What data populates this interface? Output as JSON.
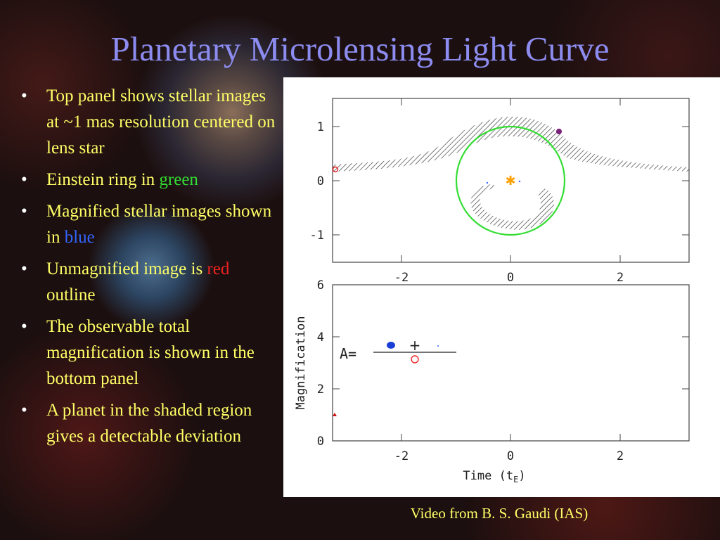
{
  "slide": {
    "title": "Planetary Microlensing Light Curve",
    "credit": "Video from B. S. Gaudi (IAS)"
  },
  "bullets": [
    {
      "text": "Top panel shows stellar images at ~1 mas resolution centered on lens star"
    },
    {
      "pre": "Einstein ring in ",
      "highlight": "green",
      "post": ""
    },
    {
      "pre": "Magnified stellar images shown in ",
      "highlight": "blue",
      "post": ""
    },
    {
      "pre": "Unmagnified image is ",
      "highlight": "red",
      "post": " outline"
    },
    {
      "text": "The observable total magnification is shown in the bottom panel"
    },
    {
      "text": "A planet in the shaded region gives a detectable deviation"
    }
  ],
  "colors": {
    "title": "#8c8cf0",
    "bullet_text": "#ffff66",
    "green": "#33dd33",
    "blue": "#3366ff",
    "red": "#ee2222"
  },
  "chart_data": [
    {
      "type": "scatter",
      "panel": "top",
      "xlim": [
        -3.2,
        3.3
      ],
      "ylim": [
        -1.5,
        1.5
      ],
      "x_ticks": [
        "-2",
        "0",
        "2"
      ],
      "y_ticks": [
        "1",
        "0",
        "-1"
      ],
      "einstein_ring_radius": 1,
      "lens_star": [
        0,
        0
      ],
      "planet": [
        0.9,
        0.9
      ],
      "unmagnified_source": [
        -3.2,
        0.2
      ]
    },
    {
      "type": "scatter",
      "panel": "bottom",
      "xlim": [
        -3.2,
        3.3
      ],
      "ylim": [
        0,
        6
      ],
      "x_ticks": [
        "-2",
        "0",
        "2"
      ],
      "y_ticks": [
        "6",
        "4",
        "2",
        "0"
      ],
      "xlabel": "Time (t",
      "xlabel_sub": "E",
      "xlabel_close": ")",
      "ylabel": "Magnification",
      "points": [
        {
          "x": -3.2,
          "y": 1.0
        }
      ],
      "equation_label": "A="
    }
  ]
}
